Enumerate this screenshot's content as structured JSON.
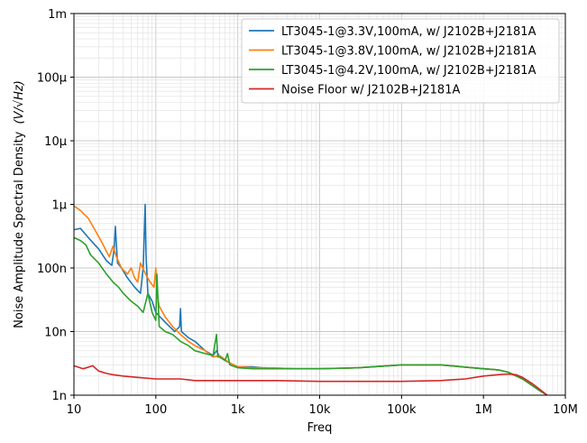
{
  "chart_data": {
    "type": "line",
    "xscale": "log",
    "yscale": "log",
    "xlabel": "Freq",
    "ylabel": "Noise Amplitude Spectral Density",
    "ylabel_unit": "(V/√Hz)",
    "xlim": [
      10,
      10000000
    ],
    "ylim": [
      1e-09,
      0.001
    ],
    "grid": true,
    "legend_placement": "top-right",
    "x_ticks": [
      {
        "value": 10,
        "label": "10"
      },
      {
        "value": 100,
        "label": "100"
      },
      {
        "value": 1000,
        "label": "1k"
      },
      {
        "value": 10000,
        "label": "10k"
      },
      {
        "value": 100000,
        "label": "100k"
      },
      {
        "value": 1000000,
        "label": "1M"
      },
      {
        "value": 10000000,
        "label": "10M"
      }
    ],
    "y_ticks": [
      {
        "value": 1e-09,
        "label": "1n"
      },
      {
        "value": 1e-08,
        "label": "10n"
      },
      {
        "value": 1e-07,
        "label": "100n"
      },
      {
        "value": 1e-06,
        "label": "1µ"
      },
      {
        "value": 1e-05,
        "label": "10µ"
      },
      {
        "value": 0.0001,
        "label": "100µ"
      },
      {
        "value": 0.001,
        "label": "1m"
      }
    ],
    "series": [
      {
        "name": "LT3045-1@3.3V,100mA, w/ J2102B+J2181A",
        "color": "#1f77b4",
        "x": [
          10,
          12,
          15,
          20,
          25,
          29,
          31,
          32,
          34,
          38,
          45,
          55,
          65,
          70,
          74,
          76,
          80,
          90,
          100,
          130,
          170,
          195,
          200,
          205,
          250,
          300,
          400,
          500,
          550,
          600,
          700,
          800,
          1000,
          1500,
          2000,
          5000,
          10000,
          30000,
          100000,
          300000,
          1000000,
          1500000,
          2000000,
          3000000,
          4000000,
          5000000,
          6000000
        ],
        "y": [
          4e-07,
          4.2e-07,
          3e-07,
          2e-07,
          1.3e-07,
          1.1e-07,
          2e-07,
          4.5e-07,
          1.2e-07,
          1e-07,
          7e-08,
          5e-08,
          4e-08,
          1e-07,
          1e-06,
          1.5e-07,
          4e-08,
          3e-08,
          2e-08,
          1.4e-08,
          1e-08,
          1.2e-08,
          2.3e-08,
          1e-08,
          8e-09,
          7e-09,
          5e-09,
          4.2e-09,
          5e-09,
          4e-09,
          3.5e-09,
          3.2e-09,
          2.8e-09,
          2.8e-09,
          2.7e-09,
          2.6e-09,
          2.6e-09,
          2.7e-09,
          3e-09,
          3e-09,
          2.6e-09,
          2.5e-09,
          2.3e-09,
          1.8e-09,
          1.4e-09,
          1.15e-09,
          1e-09
        ]
      },
      {
        "name": "LT3045-1@3.8V,100mA, w/ J2102B+J2181A",
        "color": "#ff7f0e",
        "x": [
          10,
          12,
          15,
          18,
          22,
          27,
          30,
          33,
          38,
          45,
          50,
          55,
          60,
          65,
          75,
          85,
          95,
          100,
          103,
          110,
          130,
          160,
          200,
          250,
          300,
          400,
          500,
          600,
          800,
          1000,
          1500,
          2000,
          5000,
          10000,
          30000,
          100000,
          300000,
          1000000,
          1500000,
          2000000,
          3000000,
          4000000,
          5000000,
          6000000
        ],
        "y": [
          9.5e-07,
          8e-07,
          6e-07,
          4e-07,
          2.5e-07,
          1.5e-07,
          2.2e-07,
          1.5e-07,
          1e-07,
          8e-08,
          1e-07,
          7e-08,
          6e-08,
          1.2e-07,
          8e-08,
          6e-08,
          5e-08,
          1e-07,
          4e-08,
          2.5e-08,
          1.7e-08,
          1.2e-08,
          9e-09,
          7e-09,
          6e-09,
          5e-09,
          4e-09,
          4.2e-09,
          3.2e-09,
          2.8e-09,
          2.7e-09,
          2.7e-09,
          2.6e-09,
          2.6e-09,
          2.7e-09,
          3e-09,
          3e-09,
          2.6e-09,
          2.5e-09,
          2.3e-09,
          1.8e-09,
          1.4e-09,
          1.15e-09,
          1e-09
        ]
      },
      {
        "name": "LT3045-1@4.2V,100mA, w/ J2102B+J2181A",
        "color": "#2ca02c",
        "x": [
          10,
          12,
          14,
          16,
          20,
          25,
          30,
          35,
          40,
          50,
          60,
          70,
          80,
          90,
          100,
          103,
          110,
          130,
          160,
          200,
          250,
          300,
          400,
          500,
          550,
          570,
          600,
          700,
          750,
          800,
          1000,
          1500,
          2000,
          5000,
          10000,
          30000,
          100000,
          300000,
          1000000,
          1500000,
          2000000,
          3000000,
          4000000,
          5000000,
          6000000
        ],
        "y": [
          3e-07,
          2.7e-07,
          2.3e-07,
          1.6e-07,
          1.2e-07,
          8e-08,
          6e-08,
          5e-08,
          4e-08,
          3e-08,
          2.5e-08,
          2e-08,
          4e-08,
          2e-08,
          1.5e-08,
          8e-08,
          1.2e-08,
          1e-08,
          9e-09,
          7e-09,
          6e-09,
          5e-09,
          4.5e-09,
          4.2e-09,
          9e-09,
          4e-09,
          4e-09,
          3.5e-09,
          4.5e-09,
          3e-09,
          2.7e-09,
          2.6e-09,
          2.6e-09,
          2.6e-09,
          2.6e-09,
          2.7e-09,
          3e-09,
          3e-09,
          2.6e-09,
          2.5e-09,
          2.3e-09,
          1.8e-09,
          1.4e-09,
          1.15e-09,
          1e-09
        ]
      },
      {
        "name": "Noise Floor w/ J2102B+J2181A",
        "color": "#d62728",
        "x": [
          10,
          13,
          17,
          20,
          25,
          30,
          40,
          60,
          100,
          200,
          300,
          1000,
          3000,
          10000,
          100000,
          300000,
          600000,
          1000000,
          1500000,
          2000000,
          2500000,
          3000000,
          4000000,
          5000000,
          6000000
        ],
        "y": [
          2.9e-09,
          2.6e-09,
          2.9e-09,
          2.4e-09,
          2.2e-09,
          2.1e-09,
          2e-09,
          1.9e-09,
          1.8e-09,
          1.8e-09,
          1.7e-09,
          1.7e-09,
          1.7e-09,
          1.65e-09,
          1.65e-09,
          1.7e-09,
          1.8e-09,
          2e-09,
          2.1e-09,
          2.15e-09,
          2.1e-09,
          1.9e-09,
          1.5e-09,
          1.2e-09,
          1e-09
        ]
      }
    ]
  }
}
